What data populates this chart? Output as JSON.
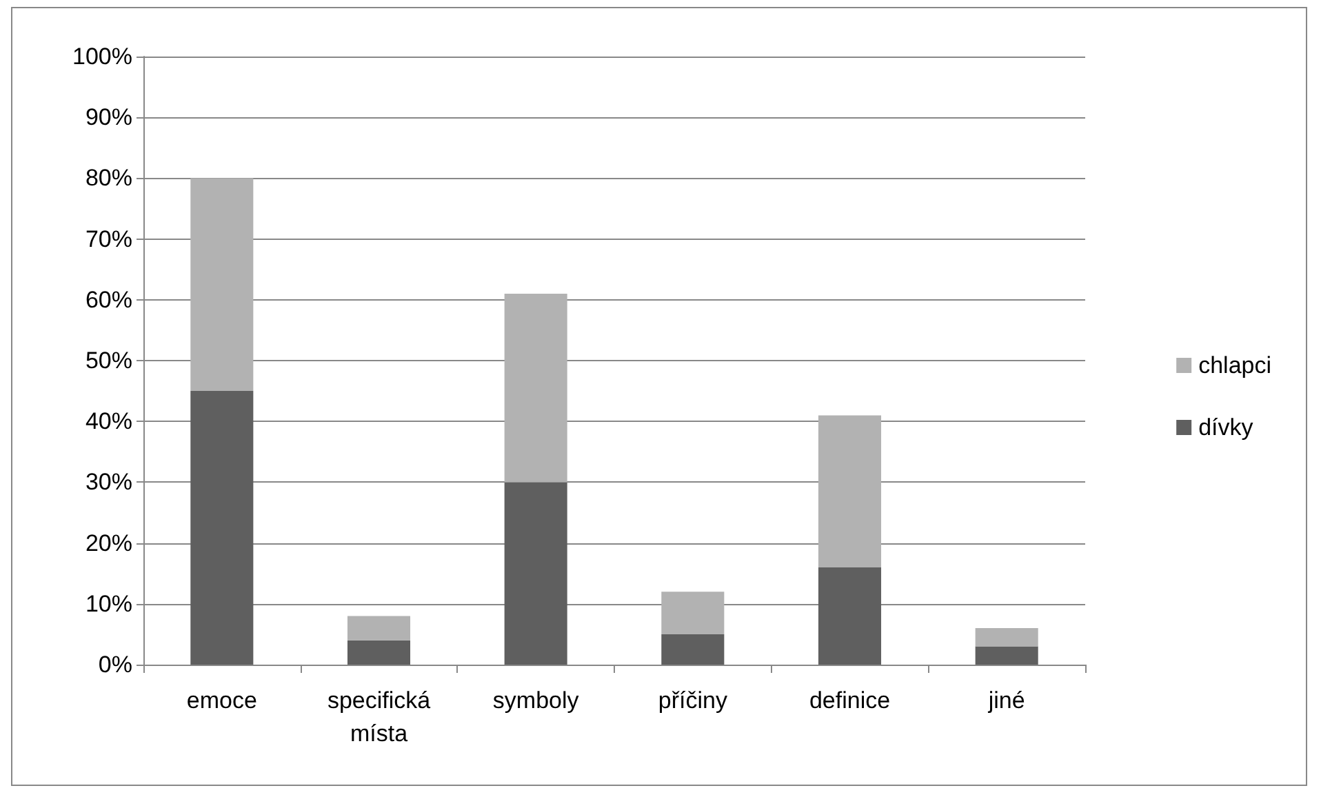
{
  "chart_data": {
    "type": "bar",
    "stacked": true,
    "categories": [
      "emoce",
      "specifická\nmísta",
      "symboly",
      "příčiny",
      "definice",
      "jiné"
    ],
    "series": [
      {
        "name": "dívky",
        "color": "#5f5f5f",
        "values": [
          45,
          4,
          30,
          5,
          16,
          3
        ]
      },
      {
        "name": "chlapci",
        "color": "#b2b2b2",
        "values": [
          35,
          4,
          31,
          7,
          25,
          3
        ]
      }
    ],
    "ylim": [
      0,
      100
    ],
    "yticks": [
      {
        "value": 0,
        "label": "0%"
      },
      {
        "value": 10,
        "label": "10%"
      },
      {
        "value": 20,
        "label": "20%"
      },
      {
        "value": 30,
        "label": "30%"
      },
      {
        "value": 40,
        "label": "40%"
      },
      {
        "value": 50,
        "label": "50%"
      },
      {
        "value": 60,
        "label": "60%"
      },
      {
        "value": 70,
        "label": "70%"
      },
      {
        "value": 80,
        "label": "80%"
      },
      {
        "value": 90,
        "label": "90%"
      },
      {
        "value": 100,
        "label": "100%"
      }
    ],
    "grid": "y",
    "legend": "right"
  }
}
